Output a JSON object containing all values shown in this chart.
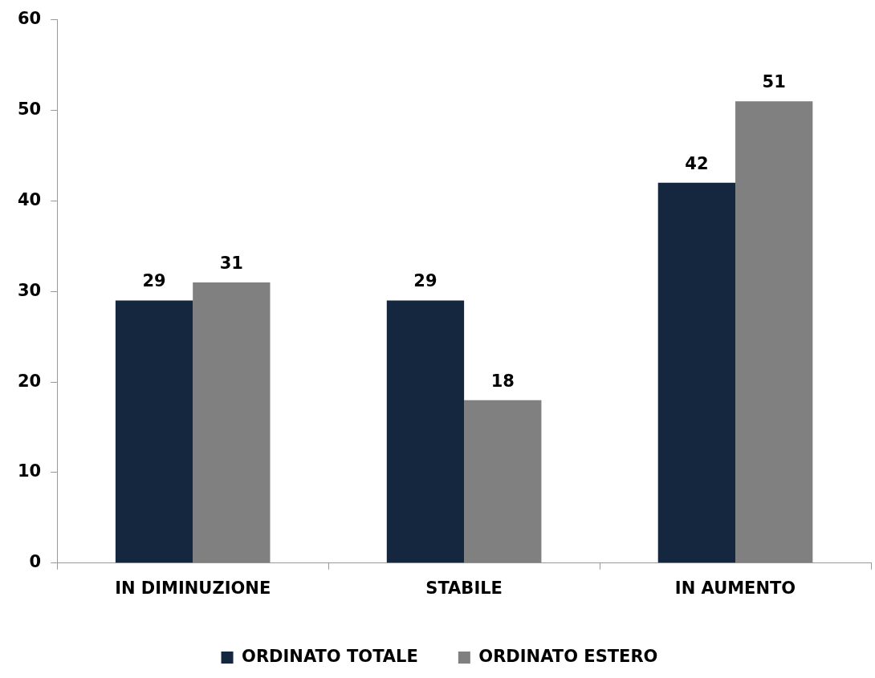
{
  "chart_data": {
    "type": "bar",
    "categories": [
      "IN DIMINUZIONE",
      "STABILE",
      "IN AUMENTO"
    ],
    "series": [
      {
        "name": "ORDINATO TOTALE",
        "color": "#14273f",
        "values": [
          29,
          29,
          42
        ]
      },
      {
        "name": "ORDINATO ESTERO",
        "color": "#808080",
        "values": [
          31,
          18,
          51
        ]
      }
    ],
    "ylim": [
      0,
      60
    ],
    "yticks": [
      0,
      10,
      20,
      30,
      40,
      50,
      60
    ],
    "grid": false,
    "legend": "bottom",
    "data_labels": true
  }
}
